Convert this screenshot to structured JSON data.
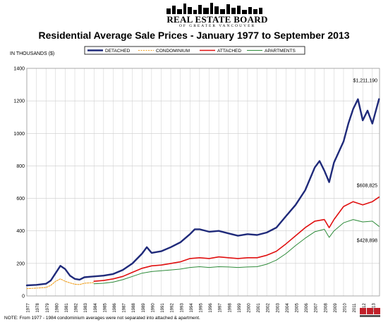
{
  "header": {
    "logo_name": "REAL ESTATE BOARD",
    "logo_sub": "OF GREATER VANCOUVER",
    "title": "Residential Average Sale Prices  -  January 1977 to September 2013",
    "units_label": "IN THOUSANDS ($)"
  },
  "footer": {
    "note": "NOTE:  From 1977 - 1984 condominium averages were not separated into attached & apartment."
  },
  "colors": {
    "detached": "#1f2a7a",
    "condominium": "#f0a020",
    "attached": "#e01010",
    "apartments": "#2e8b3a",
    "grid": "#cccccc"
  },
  "chart_data": {
    "type": "line",
    "title": "Residential Average Sale Prices  -  January 1977 to September 2013",
    "ylabel": "IN THOUSANDS ($)",
    "xlabel": "",
    "ylim": [
      0,
      1400
    ],
    "yticks": [
      "0",
      "200",
      "400",
      "600",
      "800",
      "1000",
      "1200",
      "1400"
    ],
    "x_tick_labels": [
      "1977",
      "1978",
      "1979",
      "1980",
      "1981",
      "1982",
      "1983",
      "1984",
      "1985",
      "1986",
      "1987",
      "1988",
      "1989",
      "1990",
      "1991",
      "1992",
      "1993",
      "1994",
      "1995",
      "1996",
      "1997",
      "1998",
      "1999",
      "2000",
      "2001",
      "2002",
      "2003",
      "2004",
      "2005",
      "2006",
      "2007",
      "2008",
      "2009",
      "2010",
      "2011",
      "2012",
      "2013"
    ],
    "grid": true,
    "legend_position": "top",
    "series": [
      {
        "name": "DETACHED",
        "x": [
          1977,
          1978,
          1979,
          1979.5,
          1980,
          1980.5,
          1981,
          1981.5,
          1982,
          1982.5,
          1983,
          1984,
          1985,
          1986,
          1987,
          1988,
          1989,
          1989.5,
          1990,
          1991,
          1992,
          1993,
          1994,
          1994.5,
          1995,
          1996,
          1997,
          1998,
          1999,
          2000,
          2001,
          2002,
          2003,
          2004,
          2005,
          2006,
          2007,
          2007.5,
          2008,
          2008.5,
          2009,
          2010,
          2010.5,
          2011,
          2011.5,
          2012,
          2012.5,
          2013,
          2013.7
        ],
        "values": [
          65,
          68,
          75,
          95,
          140,
          185,
          165,
          125,
          105,
          100,
          115,
          120,
          125,
          135,
          160,
          200,
          260,
          300,
          265,
          275,
          300,
          330,
          380,
          410,
          410,
          395,
          400,
          385,
          370,
          380,
          375,
          390,
          420,
          490,
          560,
          650,
          790,
          830,
          770,
          700,
          820,
          950,
          1060,
          1150,
          1210,
          1080,
          1140,
          1060,
          1211
        ]
      },
      {
        "name": "CONDOMINIUM",
        "x": [
          1977,
          1978,
          1979,
          1979.5,
          1980,
          1980.5,
          1981,
          1981.5,
          1982,
          1982.5,
          1983,
          1984
        ],
        "values": [
          45,
          48,
          52,
          65,
          90,
          105,
          90,
          80,
          72,
          70,
          78,
          82
        ]
      },
      {
        "name": "ATTACHED",
        "x": [
          1984,
          1985,
          1986,
          1987,
          1988,
          1989,
          1990,
          1991,
          1992,
          1993,
          1994,
          1995,
          1996,
          1997,
          1998,
          1999,
          2000,
          2001,
          2002,
          2003,
          2004,
          2005,
          2006,
          2007,
          2008,
          2008.5,
          2009,
          2010,
          2011,
          2012,
          2013,
          2013.7
        ],
        "values": [
          90,
          95,
          105,
          120,
          145,
          170,
          185,
          190,
          200,
          210,
          230,
          235,
          230,
          240,
          235,
          230,
          235,
          235,
          250,
          275,
          320,
          370,
          420,
          460,
          470,
          420,
          470,
          550,
          580,
          560,
          580,
          608
        ]
      },
      {
        "name": "APARTMENTS",
        "x": [
          1984,
          1985,
          1986,
          1987,
          1988,
          1989,
          1990,
          1991,
          1992,
          1993,
          1994,
          1995,
          1996,
          1997,
          1998,
          1999,
          2000,
          2001,
          2002,
          2003,
          2004,
          2005,
          2006,
          2007,
          2008,
          2008.5,
          2009,
          2010,
          2011,
          2012,
          2013,
          2013.7
        ],
        "values": [
          75,
          78,
          85,
          100,
          120,
          140,
          150,
          155,
          160,
          165,
          175,
          180,
          175,
          180,
          178,
          175,
          178,
          180,
          195,
          220,
          260,
          310,
          355,
          395,
          410,
          360,
          400,
          450,
          470,
          455,
          460,
          428
        ]
      }
    ],
    "annotations": [
      "$1,211,190",
      "$608,825",
      "$428,898"
    ]
  }
}
